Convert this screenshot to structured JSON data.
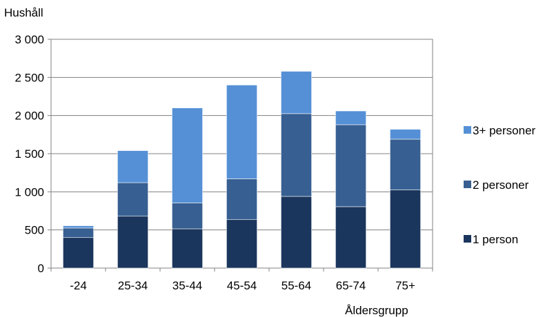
{
  "chart_data": {
    "type": "bar",
    "stacked": true,
    "title": "",
    "ylabel": "Hushåll",
    "xlabel": "Åldersgrupp",
    "categories": [
      "-24",
      "25-34",
      "35-44",
      "45-54",
      "55-64",
      "65-74",
      "75+"
    ],
    "ylim": [
      0,
      3000
    ],
    "yticks": [
      0,
      500,
      1000,
      1500,
      2000,
      2500,
      3000
    ],
    "ytick_labels": [
      "0",
      "500",
      "1 000",
      "1 500",
      "2 000",
      "2 500",
      "3 000"
    ],
    "grid": true,
    "legend_position": "right",
    "series": [
      {
        "name": "1 person",
        "color": "#1b365d",
        "values": [
          400,
          680,
          515,
          635,
          940,
          805,
          1025
        ]
      },
      {
        "name": "2 personer",
        "color": "#375f91",
        "values": [
          125,
          440,
          340,
          535,
          1085,
          1075,
          665
        ]
      },
      {
        "name": "3+ personer",
        "color": "#5590d6",
        "values": [
          30,
          420,
          1245,
          1230,
          555,
          180,
          130
        ]
      }
    ],
    "legend_order": [
      "3+ personer",
      "2 personer",
      "1 person"
    ]
  }
}
